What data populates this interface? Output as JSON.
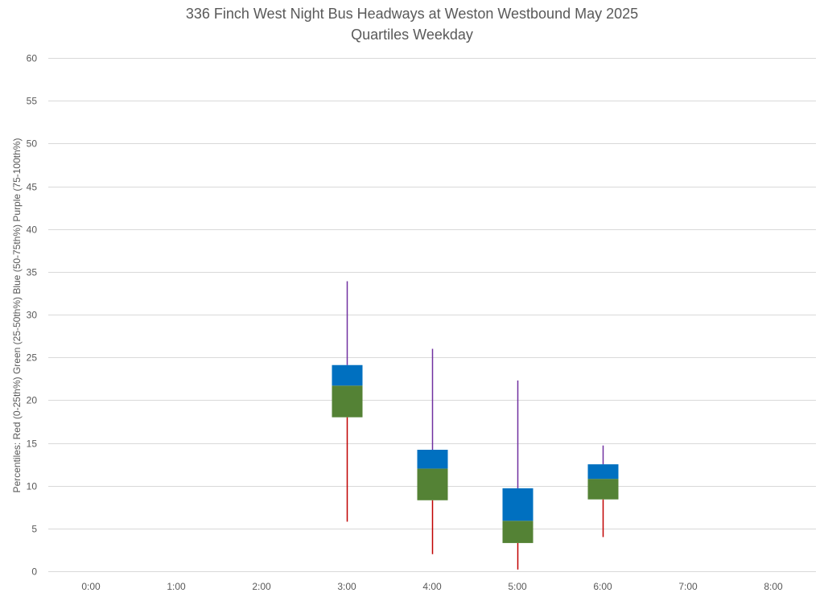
{
  "chart_data": {
    "type": "box",
    "title": "336 Finch West Night Bus Headways at Weston Westbound May 2025",
    "subtitle": "Quartiles Weekday",
    "ylabel": "Percentiles:  Red (0-25th%)  Green (25-50th%)  Blue (50-75th%)  Purple (75-100th%)",
    "xlabel": "",
    "categories": [
      "0:00",
      "1:00",
      "2:00",
      "3:00",
      "4:00",
      "5:00",
      "6:00",
      "7:00",
      "8:00"
    ],
    "ylim": [
      0,
      60
    ],
    "yticks": [
      0,
      5,
      10,
      15,
      20,
      25,
      30,
      35,
      40,
      45,
      50,
      55,
      60
    ],
    "grid": true,
    "colors": {
      "min_to_q1": "#c00000",
      "q1_to_median": "#548235",
      "median_to_q3": "#0070c0",
      "q3_to_max": "#7030a0",
      "grid": "#d9d9d9",
      "text": "#595959"
    },
    "boxes": [
      {
        "category": "3:00",
        "min": 5.8,
        "q1": 18.0,
        "median": 21.7,
        "q3": 24.1,
        "max": 33.9
      },
      {
        "category": "4:00",
        "min": 2.0,
        "q1": 8.3,
        "median": 12.0,
        "q3": 14.2,
        "max": 26.0
      },
      {
        "category": "5:00",
        "min": 0.2,
        "q1": 3.3,
        "median": 5.9,
        "q3": 9.7,
        "max": 22.3
      },
      {
        "category": "6:00",
        "min": 4.0,
        "q1": 8.4,
        "median": 10.8,
        "q3": 12.5,
        "max": 14.7
      }
    ]
  }
}
